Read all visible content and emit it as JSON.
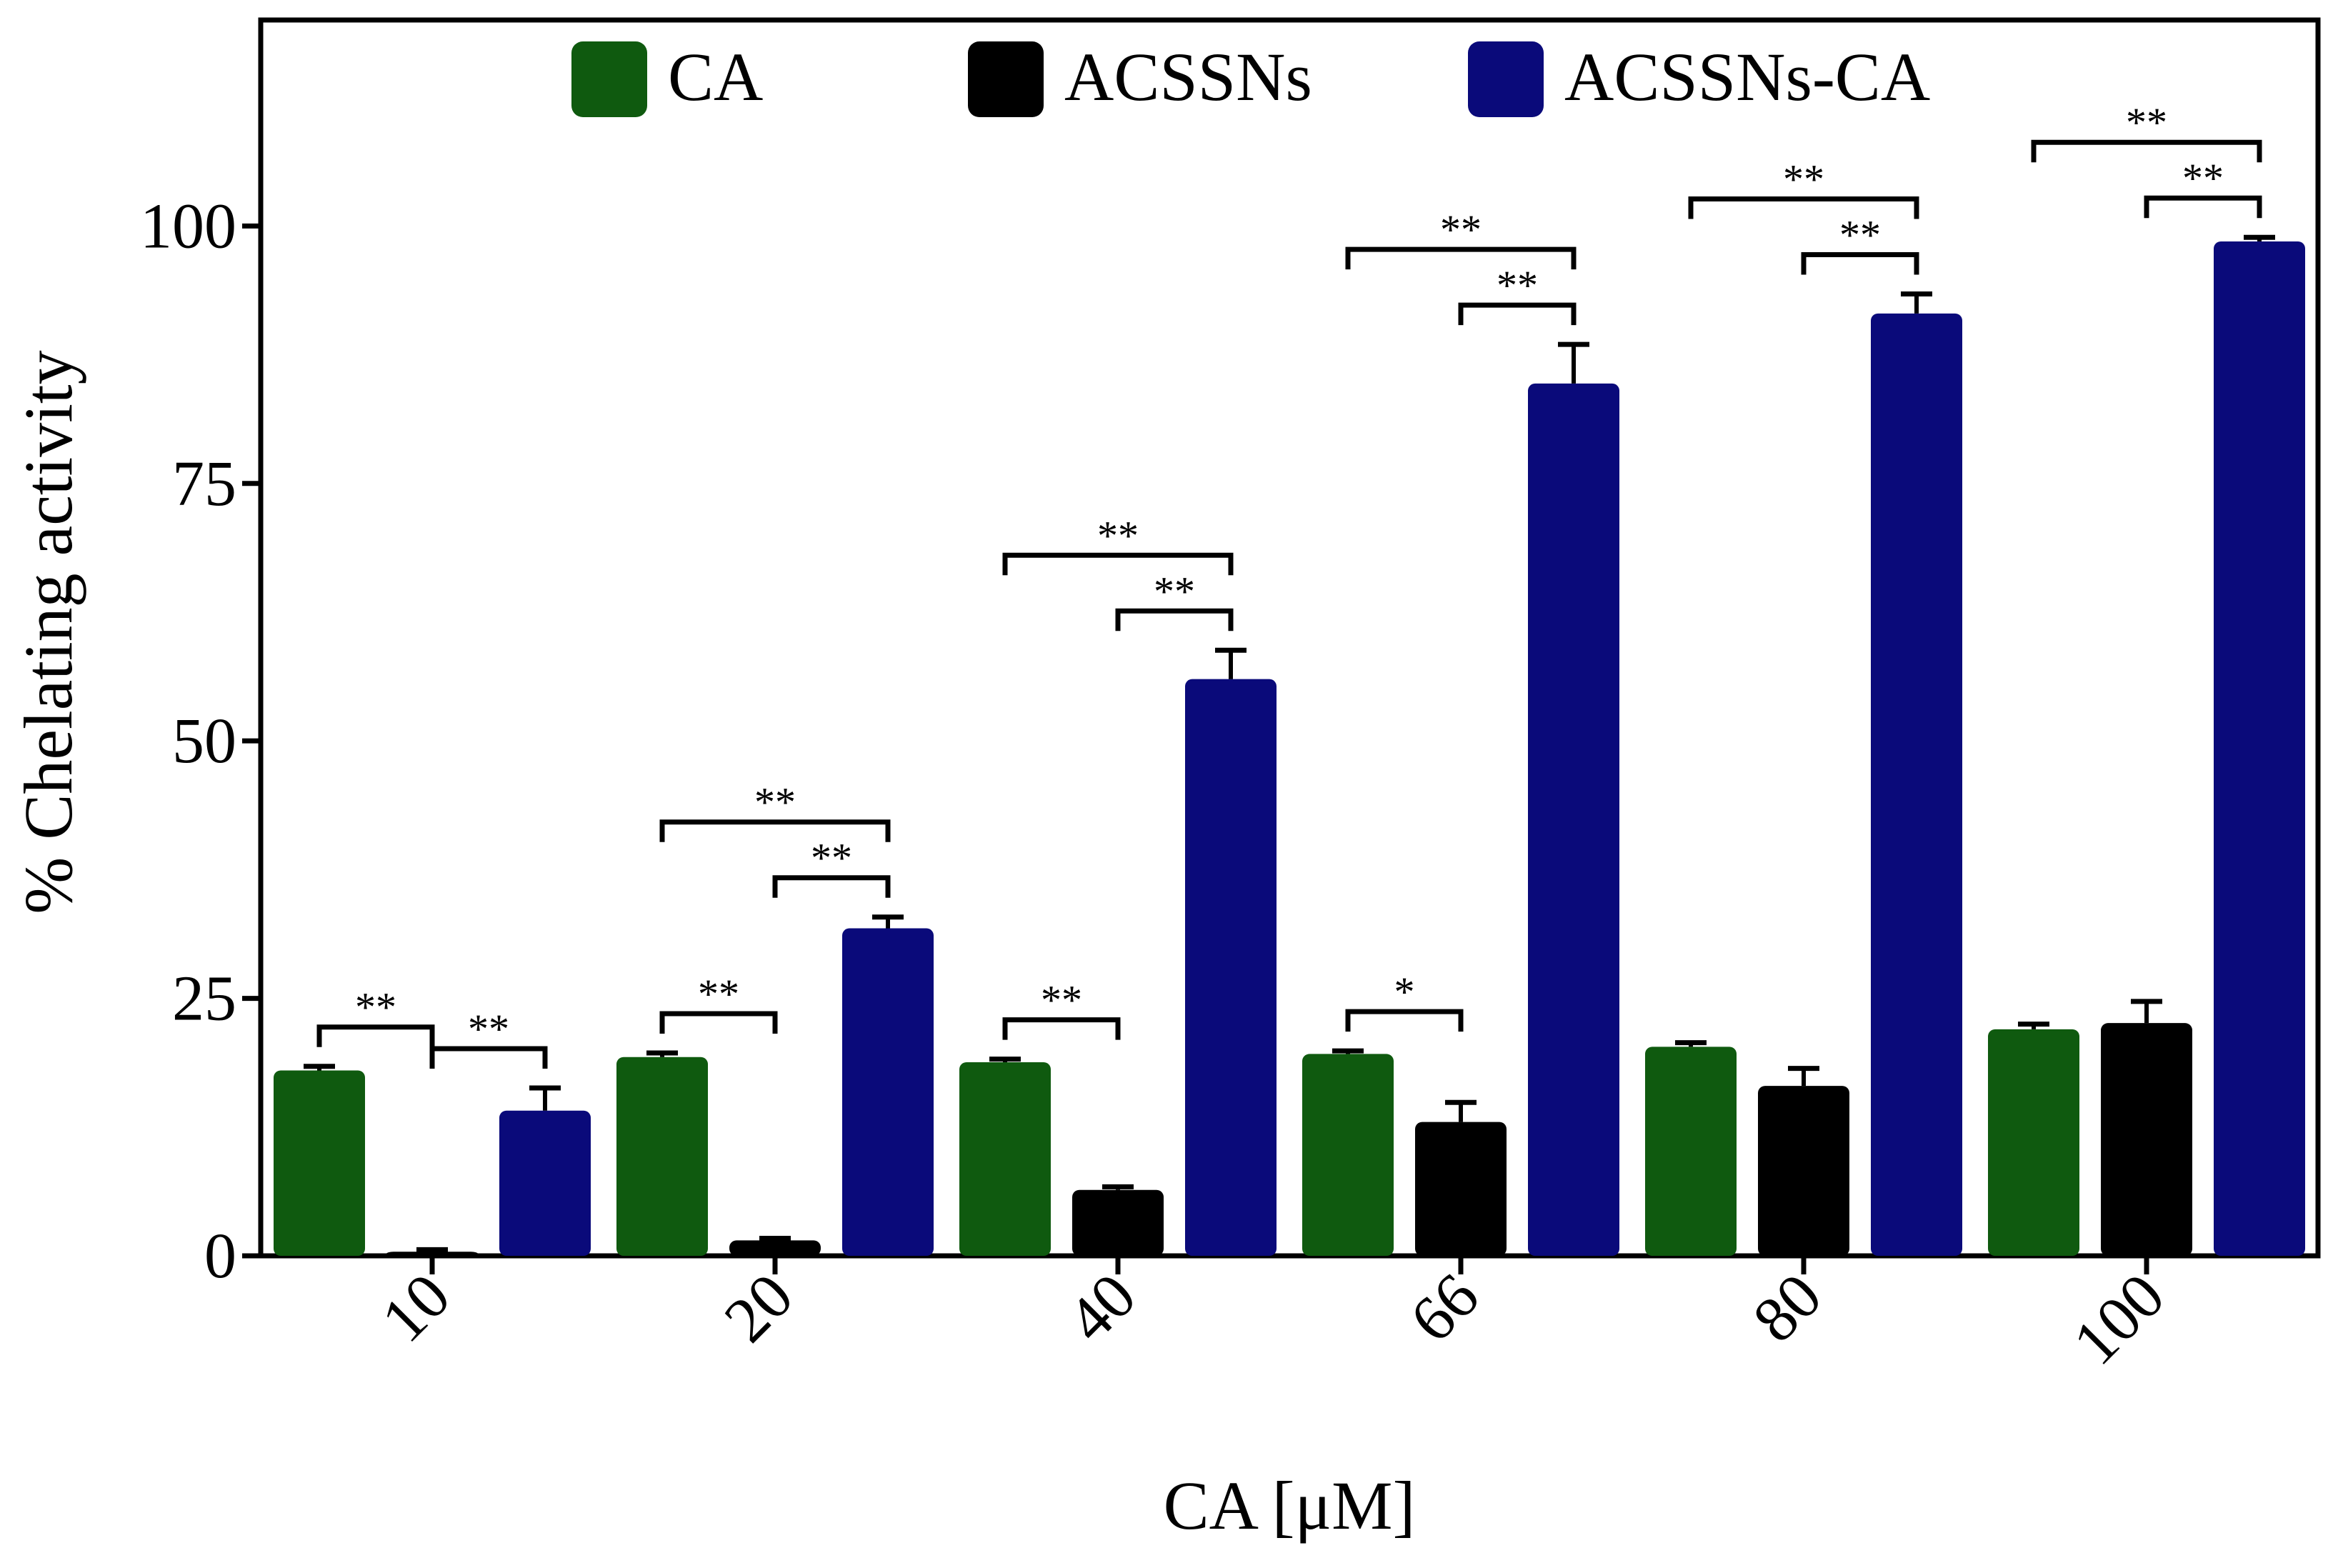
{
  "chart_data": {
    "type": "bar",
    "title": "",
    "xlabel": "CA [μM]",
    "ylabel": "% Chelating activity",
    "ylim": [
      0,
      120
    ],
    "yticks": [
      0,
      25,
      50,
      75,
      100
    ],
    "ytick_labels": [
      "0",
      "25",
      "50",
      "75",
      "100"
    ],
    "categories": [
      "10",
      "20",
      "40",
      "66",
      "80",
      "100"
    ],
    "grid": false,
    "legend_position": "top",
    "series": [
      {
        "name": "CA",
        "color": "#0f5a0f",
        "values": [
          18,
          19.3,
          18.8,
          19.6,
          20.3,
          22
        ],
        "errors": [
          0.4,
          0.4,
          0.3,
          0.3,
          0.4,
          0.5
        ]
      },
      {
        "name": "ACSSNs",
        "color": "#000000",
        "values": [
          0.4,
          1.5,
          6.4,
          13,
          16.5,
          22.6
        ],
        "errors": [
          0.2,
          0.2,
          0.3,
          1.9,
          1.7,
          2.1
        ]
      },
      {
        "name": "ACSSNs-CA",
        "color": "#0a0a7a",
        "values": [
          14.1,
          31.8,
          56,
          84.7,
          91.5,
          98.5
        ],
        "errors": [
          2.2,
          1.1,
          2.8,
          3.8,
          1.9,
          0.4
        ]
      }
    ],
    "significance": [
      {
        "group": 0,
        "from": 0,
        "to": 1,
        "label": "**",
        "level": 0
      },
      {
        "group": 0,
        "from": 1,
        "to": 2,
        "label": "**",
        "level": 0
      },
      {
        "group": 1,
        "from": 0,
        "to": 1,
        "label": "**",
        "level": 0
      },
      {
        "group": 1,
        "from": 1,
        "to": 2,
        "label": "**",
        "level": 0
      },
      {
        "group": 1,
        "from": 0,
        "to": 2,
        "label": "**",
        "level": 1
      },
      {
        "group": 2,
        "from": 0,
        "to": 1,
        "label": "**",
        "level": 0
      },
      {
        "group": 2,
        "from": 1,
        "to": 2,
        "label": "**",
        "level": 0
      },
      {
        "group": 2,
        "from": 0,
        "to": 2,
        "label": "**",
        "level": 1
      },
      {
        "group": 3,
        "from": 0,
        "to": 1,
        "label": "*",
        "level": 0
      },
      {
        "group": 3,
        "from": 1,
        "to": 2,
        "label": "**",
        "level": 0
      },
      {
        "group": 3,
        "from": 0,
        "to": 2,
        "label": "**",
        "level": 1
      },
      {
        "group": 4,
        "from": 1,
        "to": 2,
        "label": "**",
        "level": 0
      },
      {
        "group": 4,
        "from": 0,
        "to": 2,
        "label": "**",
        "level": 1
      },
      {
        "group": 5,
        "from": 1,
        "to": 2,
        "label": "**",
        "level": 0
      },
      {
        "group": 5,
        "from": 0,
        "to": 2,
        "label": "**",
        "level": 1
      }
    ]
  }
}
